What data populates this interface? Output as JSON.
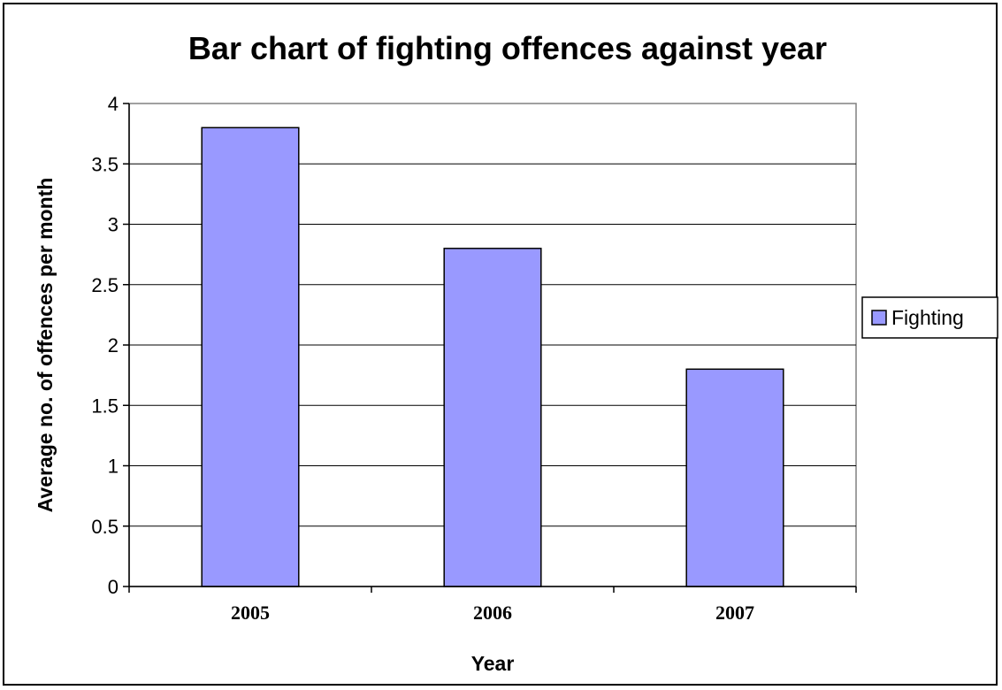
{
  "chart_data": {
    "type": "bar",
    "title": "Bar chart of fighting offences against year",
    "xlabel": "Year",
    "ylabel": "Average no. of offences per month",
    "categories": [
      "2005",
      "2006",
      "2007"
    ],
    "series": [
      {
        "name": "Fighting",
        "values": [
          3.8,
          2.8,
          1.8
        ],
        "color": "#9999ff"
      }
    ],
    "ylim": [
      0,
      4
    ],
    "yticks": [
      "0",
      "0.5",
      "1",
      "1.5",
      "2",
      "2.5",
      "3",
      "3.5",
      "4"
    ],
    "grid": true,
    "legend_position": "right"
  }
}
